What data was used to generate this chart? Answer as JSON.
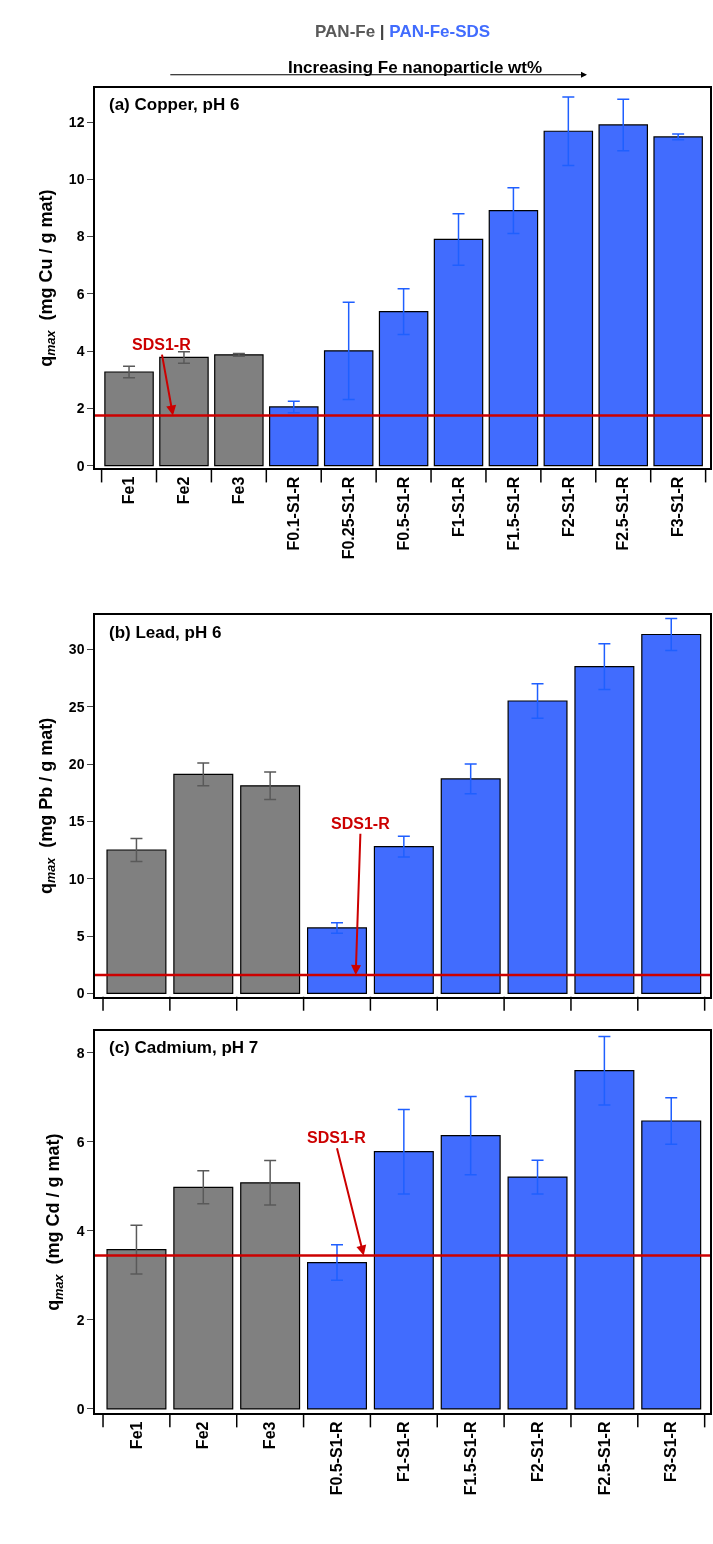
{
  "chart_data": [
    {
      "type": "bar",
      "title": "(a) Copper, pH 6",
      "ylabel": "q$_{max}$  (mg Cu / g mat)",
      "annotations": [
        "|",
        "Increasing Fe nanoparticle wt%"
      ],
      "categories": [
        "Fe1",
        "Fe2",
        "Fe3",
        "F0.1-S1-R",
        "F0.25-S1-R",
        "F0.5-S1-R",
        "F1-S1-R",
        "F1.5-S1-R",
        "F2-S1-R",
        "F2.5-S1-R",
        "F3-S1-R"
      ],
      "series": [
        {
          "name": "PAN-Fe",
          "color": "#808080",
          "values": [
            3.27,
            3.78,
            3.87,
            null,
            null,
            null,
            null,
            null,
            null,
            null,
            null
          ],
          "errors": [
            0.2,
            0.2,
            0.05,
            null,
            null,
            null,
            null,
            null,
            null,
            null,
            null
          ]
        },
        {
          "name": "PAN-Fe-SDS",
          "color": "#416cfe",
          "values": [
            null,
            null,
            null,
            2.05,
            4.01,
            5.38,
            7.9,
            8.91,
            11.68,
            11.9,
            11.48
          ],
          "errors": [
            null,
            null,
            null,
            0.2,
            1.7,
            0.8,
            0.9,
            0.8,
            1.2,
            0.9,
            0.1
          ]
        }
      ],
      "ylim": [
        -0.1,
        13.2
      ],
      "yticks": [
        0,
        2,
        4,
        6,
        8,
        10,
        12
      ],
      "ref_lines": [
        {
          "axis": "y",
          "value": 1.75,
          "label": "SDS1-R",
          "color": "#cc0000"
        }
      ]
    },
    {
      "type": "bar",
      "title": "(b) Lead, pH 6",
      "ylabel": "q$_{max}$  (mg Pb / g mat)",
      "tick_labels": "y",
      "categories": [
        null,
        null,
        null,
        null,
        null,
        null,
        null,
        null,
        null
      ],
      "series": [
        {
          "color": "#808080",
          "values": [
            12.5,
            19.1,
            18.1,
            null,
            null,
            null,
            null,
            null,
            null
          ],
          "errors": [
            1.0,
            1.0,
            1.2,
            null,
            null,
            null,
            null,
            null,
            null
          ]
        },
        {
          "color": "#416cfe",
          "values": [
            null,
            null,
            null,
            5.7,
            12.8,
            18.7,
            25.5,
            28.5,
            31.3
          ],
          "errors": [
            null,
            null,
            null,
            0.45,
            0.9,
            1.3,
            1.5,
            2.0,
            1.4
          ]
        }
      ],
      "ylim": [
        -0.3,
        33.0
      ],
      "yticks": [
        0,
        5,
        10,
        15,
        20,
        25,
        30
      ],
      "ref_lines": [
        {
          "axis": "y",
          "value": 1.6,
          "label": "SDS1-R",
          "color": "#cc0000"
        }
      ]
    },
    {
      "type": "bar",
      "title": "(c) Cadmium, pH 7",
      "ylabel": "q$_{max}$  (mg Cd / g mat)",
      "categories": [
        "Fe1",
        "Fe2",
        "Fe3",
        "F0.5-S1-R",
        "F1-S1-R",
        "F1.5-S1-R",
        "F2-S1-R",
        "F2.5-S1-R",
        "F3-S1-R"
      ],
      "series": [
        {
          "color": "#808080",
          "values": [
            3.58,
            4.98,
            5.08,
            null,
            null,
            null,
            null,
            null,
            null
          ],
          "errors": [
            0.55,
            0.37,
            0.5,
            null,
            null,
            null,
            null,
            null,
            null
          ]
        },
        {
          "color": "#416cfe",
          "values": [
            null,
            null,
            null,
            3.29,
            5.78,
            6.14,
            5.21,
            7.6,
            6.47
          ],
          "errors": [
            null,
            null,
            null,
            0.4,
            0.95,
            0.88,
            0.38,
            0.77,
            0.52
          ]
        }
      ],
      "ylim": [
        -0.1,
        8.5
      ],
      "yticks": [
        0,
        2,
        4,
        6,
        8
      ],
      "ref_lines": [
        {
          "axis": "y",
          "value": 3.45,
          "label": "SDS1-R",
          "color": "#cc0000"
        }
      ]
    }
  ]
}
